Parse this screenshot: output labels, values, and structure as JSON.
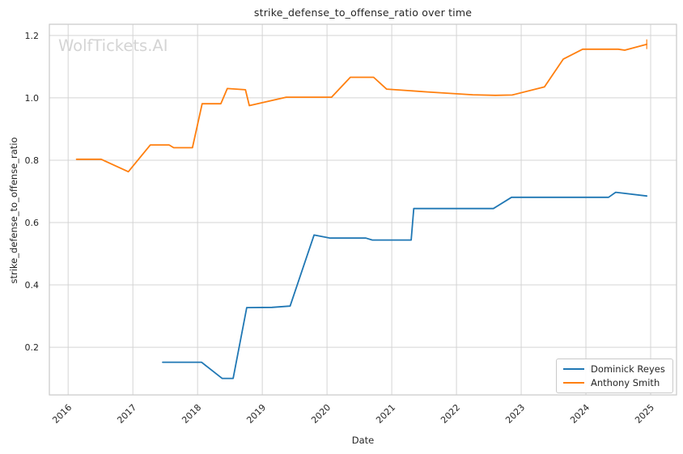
{
  "watermark": "WolfTickets.AI",
  "colors": {
    "background": "#ffffff",
    "grid": "#d4d4d4",
    "spine": "#c9c9c9",
    "text": "#262626",
    "watermark": "#d4d4d4",
    "series_blue": "#1f77b4",
    "series_orange": "#ff7f0e"
  },
  "chart_data": {
    "type": "line",
    "title": "strike_defense_to_offense_ratio over time",
    "xlabel": "Date",
    "ylabel": "strike_defense_to_offense_ratio",
    "xlim": [
      2015.71,
      2025.4
    ],
    "ylim": [
      0.047,
      1.236
    ],
    "x_ticks": [
      2016,
      2017,
      2018,
      2019,
      2020,
      2021,
      2022,
      2023,
      2024,
      2025
    ],
    "y_ticks": [
      0.2,
      0.4,
      0.6,
      0.8,
      1.0,
      1.2
    ],
    "grid": true,
    "legend_position": "lower right",
    "series": [
      {
        "name": "Dominick Reyes",
        "color": "#1f77b4",
        "end_cap": false,
        "points": [
          [
            2017.46,
            0.152
          ],
          [
            2018.06,
            0.152
          ],
          [
            2018.38,
            0.1
          ],
          [
            2018.55,
            0.1
          ],
          [
            2018.76,
            0.327
          ],
          [
            2019.15,
            0.328
          ],
          [
            2019.43,
            0.332
          ],
          [
            2019.8,
            0.56
          ],
          [
            2020.05,
            0.55
          ],
          [
            2020.6,
            0.55
          ],
          [
            2020.7,
            0.544
          ],
          [
            2021.3,
            0.544
          ],
          [
            2021.34,
            0.645
          ],
          [
            2022.57,
            0.645
          ],
          [
            2022.85,
            0.681
          ],
          [
            2024.35,
            0.681
          ],
          [
            2024.46,
            0.697
          ],
          [
            2024.94,
            0.685
          ]
        ]
      },
      {
        "name": "Anthony Smith",
        "color": "#ff7f0e",
        "end_cap": true,
        "points": [
          [
            2016.13,
            0.803
          ],
          [
            2016.51,
            0.803
          ],
          [
            2016.93,
            0.763
          ],
          [
            2017.27,
            0.849
          ],
          [
            2017.56,
            0.849
          ],
          [
            2017.63,
            0.84
          ],
          [
            2017.92,
            0.84
          ],
          [
            2018.07,
            0.981
          ],
          [
            2018.36,
            0.981
          ],
          [
            2018.46,
            1.03
          ],
          [
            2018.74,
            1.026
          ],
          [
            2018.8,
            0.975
          ],
          [
            2019.37,
            1.002
          ],
          [
            2020.07,
            1.002
          ],
          [
            2020.36,
            1.066
          ],
          [
            2020.72,
            1.066
          ],
          [
            2020.92,
            1.028
          ],
          [
            2021.55,
            1.019
          ],
          [
            2022.25,
            1.01
          ],
          [
            2022.6,
            1.008
          ],
          [
            2022.86,
            1.009
          ],
          [
            2023.36,
            1.035
          ],
          [
            2023.65,
            1.124
          ],
          [
            2023.95,
            1.156
          ],
          [
            2024.5,
            1.156
          ],
          [
            2024.6,
            1.153
          ],
          [
            2024.94,
            1.172
          ]
        ]
      }
    ]
  }
}
